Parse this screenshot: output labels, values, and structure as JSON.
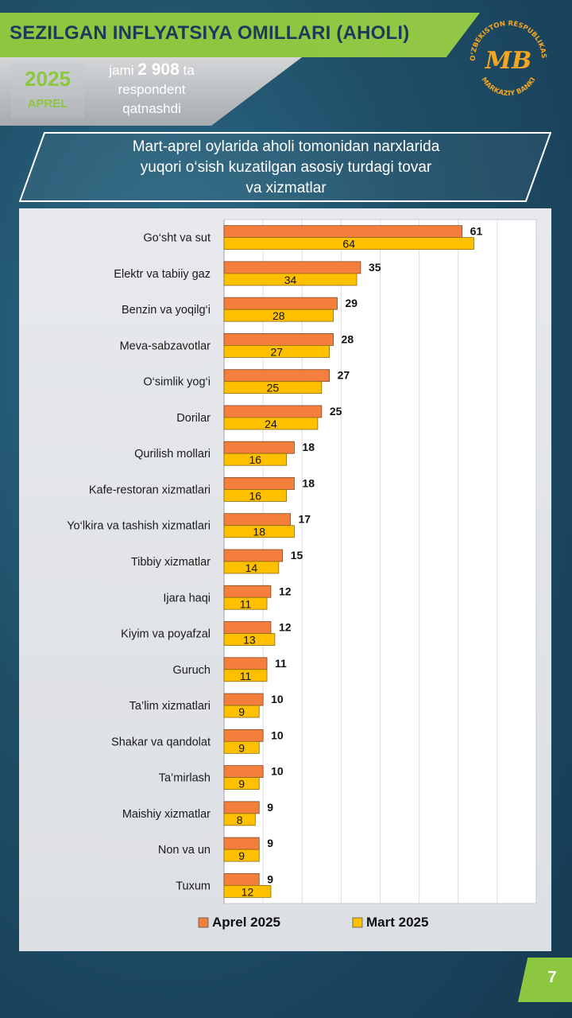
{
  "header": {
    "title": "SEZILGAN INFLYATSIYA OMILLARI (AHOLI)",
    "year": "2025",
    "month": "APREL",
    "respondents_prefix": "jami",
    "respondents_count": "2 908",
    "respondents_suffix": "ta",
    "respondents_line2": "respondent",
    "respondents_line3": "qatnashdi"
  },
  "logo": {
    "arc_text_top": "O‘ZBEKISTON RESPUBLIKASI",
    "arc_text_bottom": "MARKAZIY BANKI",
    "monogram": "MB",
    "color": "#f5a623"
  },
  "subtitle": {
    "line1": "Mart-aprel oylarida aholi tomonidan narxlarida",
    "line2": "yuqori o‘sish kuzatilgan asosiy turdagi tovar",
    "line3": "va xizmatlar"
  },
  "page_number": "7",
  "colors": {
    "accent_green": "#8dc63f",
    "title_navy": "#1b3a5c",
    "april_bar": "#f47f3c",
    "march_bar": "#ffc000"
  },
  "chart_data": {
    "type": "bar",
    "orientation": "horizontal",
    "categories": [
      "Go‘sht va sut",
      "Elektr va tabiiy gaz",
      "Benzin va yoqilg‘i",
      "Meva-sabzavotlar",
      "O‘simlik yog‘i",
      "Dorilar",
      "Qurilish mollari",
      "Kafe-restoran xizmatlari",
      "Yo‘lkira va tashish xizmatlari",
      "Tibbiy xizmatlar",
      "Ijara haqi",
      "Kiyim va poyafzal",
      "Guruch",
      "Ta’lim xizmatlari",
      "Shakar va qandolat",
      "Ta’mirlash",
      "Maishiy xizmatlar",
      "Non va un",
      "Tuxum"
    ],
    "series": [
      {
        "name": "Aprel 2025",
        "color": "#f47f3c",
        "values": [
          61,
          35,
          29,
          28,
          27,
          25,
          18,
          18,
          17,
          15,
          12,
          12,
          11,
          10,
          10,
          10,
          9,
          9,
          9
        ]
      },
      {
        "name": "Mart 2025",
        "color": "#ffc000",
        "values": [
          64,
          34,
          28,
          27,
          25,
          24,
          16,
          16,
          18,
          14,
          11,
          13,
          11,
          9,
          9,
          9,
          8,
          9,
          12
        ]
      }
    ],
    "xlim": [
      0,
      80
    ],
    "grid": true,
    "legend_position": "bottom"
  }
}
